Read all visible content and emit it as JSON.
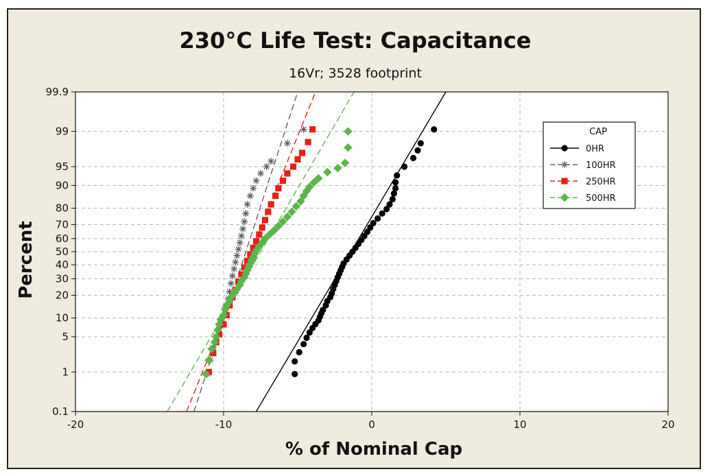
{
  "chart_data": {
    "type": "scatter",
    "title": "230°C Life Test: Capacitance",
    "subtitle": "16Vr; 3528 footprint",
    "xlabel": "% of Nominal Cap",
    "ylabel": "Percent",
    "xlim": [
      -20,
      20
    ],
    "xticks": [
      -20,
      -10,
      0,
      10,
      20
    ],
    "yscale": "normal-probability",
    "ylim": [
      0.1,
      99.9
    ],
    "yticks": [
      0.1,
      1,
      5,
      10,
      20,
      30,
      40,
      50,
      60,
      70,
      80,
      90,
      95,
      99,
      99.9
    ],
    "ytick_labels": [
      "0.1",
      "1",
      "5",
      "10",
      "20",
      "30",
      "40",
      "50",
      "60",
      "70",
      "80",
      "90",
      "95",
      "99",
      "99.9"
    ],
    "grid": true,
    "legend": {
      "title": "CAP",
      "placement": "top-right"
    },
    "series": [
      {
        "name": "0HR",
        "color": "#000000",
        "marker": "circle",
        "line": "solid",
        "fit": [
          [
            -7.8,
            0.1
          ],
          [
            5.0,
            99.9
          ]
        ],
        "points": [
          [
            -5.2,
            0.9
          ],
          [
            -5.2,
            1.7
          ],
          [
            -4.9,
            2.6
          ],
          [
            -4.6,
            3.7
          ],
          [
            -4.4,
            4.8
          ],
          [
            -4.2,
            5.9
          ],
          [
            -4.0,
            7.0
          ],
          [
            -3.8,
            8.1
          ],
          [
            -3.6,
            9.2
          ],
          [
            -3.5,
            10.4
          ],
          [
            -3.4,
            11.7
          ],
          [
            -3.3,
            13.0
          ],
          [
            -3.1,
            15.0
          ],
          [
            -3.0,
            17.0
          ],
          [
            -2.8,
            19.0
          ],
          [
            -2.7,
            21.0
          ],
          [
            -2.6,
            23.5
          ],
          [
            -2.5,
            26.0
          ],
          [
            -2.4,
            28.5
          ],
          [
            -2.3,
            31.0
          ],
          [
            -2.2,
            33.5
          ],
          [
            -2.1,
            36.0
          ],
          [
            -2.0,
            38.5
          ],
          [
            -1.9,
            41.0
          ],
          [
            -1.7,
            44.0
          ],
          [
            -1.5,
            47.0
          ],
          [
            -1.3,
            50.0
          ],
          [
            -1.1,
            53.0
          ],
          [
            -0.9,
            56.0
          ],
          [
            -0.7,
            59.0
          ],
          [
            -0.5,
            62.0
          ],
          [
            -0.3,
            65.0
          ],
          [
            -0.1,
            68.0
          ],
          [
            0.1,
            71.0
          ],
          [
            0.4,
            74.0
          ],
          [
            0.7,
            77.0
          ],
          [
            1.0,
            79.5
          ],
          [
            1.2,
            82.0
          ],
          [
            1.4,
            84.5
          ],
          [
            1.5,
            87.0
          ],
          [
            1.6,
            89.0
          ],
          [
            1.6,
            91.0
          ],
          [
            1.7,
            93.0
          ],
          [
            2.2,
            95.0
          ],
          [
            2.8,
            96.5
          ],
          [
            3.1,
            97.5
          ],
          [
            3.3,
            98.2
          ],
          [
            4.2,
            99.1
          ]
        ]
      },
      {
        "name": "100HR",
        "color": "#606060",
        "marker": "star",
        "line": "dashed",
        "fit": [
          [
            -12.0,
            0.1
          ],
          [
            -5.0,
            99.9
          ]
        ],
        "points": [
          [
            -11.1,
            0.9
          ],
          [
            -10.9,
            1.8
          ],
          [
            -10.7,
            3.2
          ],
          [
            -10.5,
            5.0
          ],
          [
            -10.3,
            7.0
          ],
          [
            -10.1,
            10.0
          ],
          [
            -9.9,
            14.0
          ],
          [
            -9.7,
            18.0
          ],
          [
            -9.6,
            22.0
          ],
          [
            -9.5,
            27.0
          ],
          [
            -9.4,
            32.0
          ],
          [
            -9.3,
            37.0
          ],
          [
            -9.2,
            42.0
          ],
          [
            -9.1,
            47.0
          ],
          [
            -9.0,
            52.0
          ],
          [
            -8.9,
            57.0
          ],
          [
            -8.8,
            62.0
          ],
          [
            -8.7,
            67.0
          ],
          [
            -8.6,
            72.0
          ],
          [
            -8.5,
            77.0
          ],
          [
            -8.4,
            82.0
          ],
          [
            -8.2,
            86.0
          ],
          [
            -8.0,
            89.0
          ],
          [
            -7.8,
            91.5
          ],
          [
            -7.5,
            93.5
          ],
          [
            -7.1,
            95.0
          ],
          [
            -6.8,
            96.0
          ],
          [
            -5.7,
            98.2
          ],
          [
            -4.6,
            99.1
          ]
        ]
      },
      {
        "name": "250HR",
        "color": "#e8201a",
        "marker": "square",
        "line": "dashed",
        "fit": [
          [
            -12.5,
            0.1
          ],
          [
            -3.8,
            99.9
          ]
        ],
        "points": [
          [
            -11.0,
            1.0
          ],
          [
            -10.7,
            2.5
          ],
          [
            -10.5,
            4.0
          ],
          [
            -10.3,
            5.5
          ],
          [
            -10.0,
            8.0
          ],
          [
            -9.8,
            11.0
          ],
          [
            -9.6,
            15.0
          ],
          [
            -9.4,
            19.0
          ],
          [
            -9.2,
            23.0
          ],
          [
            -9.0,
            28.0
          ],
          [
            -8.8,
            33.0
          ],
          [
            -8.6,
            38.0
          ],
          [
            -8.4,
            43.0
          ],
          [
            -8.2,
            48.0
          ],
          [
            -8.0,
            53.0
          ],
          [
            -7.8,
            58.0
          ],
          [
            -7.6,
            63.0
          ],
          [
            -7.4,
            68.0
          ],
          [
            -7.2,
            73.0
          ],
          [
            -7.0,
            78.0
          ],
          [
            -6.8,
            82.0
          ],
          [
            -6.5,
            86.0
          ],
          [
            -6.3,
            89.0
          ],
          [
            -6.0,
            91.5
          ],
          [
            -5.7,
            93.5
          ],
          [
            -5.3,
            95.0
          ],
          [
            -5.0,
            96.3
          ],
          [
            -4.7,
            97.2
          ],
          [
            -4.3,
            98.3
          ],
          [
            -4.0,
            99.1
          ]
        ]
      },
      {
        "name": "500HR",
        "color": "#5ab54a",
        "marker": "diamond",
        "line": "dashed",
        "fit": [
          [
            -13.8,
            0.1
          ],
          [
            -1.2,
            99.9
          ]
        ],
        "points": [
          [
            -11.2,
            0.9
          ],
          [
            -11.0,
            1.8
          ],
          [
            -10.8,
            3.0
          ],
          [
            -10.6,
            4.0
          ],
          [
            -10.5,
            5.0
          ],
          [
            -10.4,
            6.5
          ],
          [
            -10.3,
            8.0
          ],
          [
            -10.2,
            9.5
          ],
          [
            -10.0,
            11.0
          ],
          [
            -9.9,
            13.0
          ],
          [
            -9.8,
            15.0
          ],
          [
            -9.6,
            17.0
          ],
          [
            -9.5,
            19.0
          ],
          [
            -9.3,
            21.0
          ],
          [
            -9.1,
            23.5
          ],
          [
            -8.9,
            26.0
          ],
          [
            -8.8,
            28.5
          ],
          [
            -8.6,
            31.0
          ],
          [
            -8.5,
            33.5
          ],
          [
            -8.4,
            36.0
          ],
          [
            -8.3,
            38.5
          ],
          [
            -8.2,
            41.0
          ],
          [
            -8.1,
            43.5
          ],
          [
            -8.0,
            46.0
          ],
          [
            -7.9,
            48.5
          ],
          [
            -7.8,
            51.0
          ],
          [
            -7.6,
            54.0
          ],
          [
            -7.4,
            57.0
          ],
          [
            -7.2,
            60.0
          ],
          [
            -6.9,
            63.0
          ],
          [
            -6.6,
            66.0
          ],
          [
            -6.3,
            69.0
          ],
          [
            -6.0,
            72.0
          ],
          [
            -5.7,
            75.0
          ],
          [
            -5.4,
            78.0
          ],
          [
            -5.1,
            81.0
          ],
          [
            -4.8,
            83.5
          ],
          [
            -4.6,
            86.0
          ],
          [
            -4.4,
            88.0
          ],
          [
            -4.2,
            89.5
          ],
          [
            -3.9,
            91.0
          ],
          [
            -3.6,
            92.2
          ],
          [
            -3.0,
            93.8
          ],
          [
            -2.3,
            94.7
          ],
          [
            -1.8,
            95.7
          ],
          [
            -1.6,
            97.8
          ],
          [
            -1.6,
            99.0
          ]
        ]
      }
    ]
  }
}
